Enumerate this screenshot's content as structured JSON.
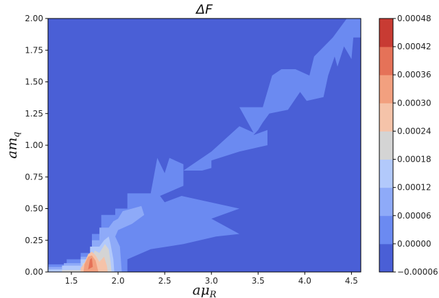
{
  "chart_data": {
    "type": "heatmap",
    "subtype": "filled-contour",
    "title": "ΔF",
    "xlabel": "aμ_R",
    "ylabel": "am_q",
    "xlim": [
      1.25,
      4.6
    ],
    "ylim": [
      0.0,
      2.0
    ],
    "x_ticks": [
      "1.5",
      "2.0",
      "2.5",
      "3.0",
      "3.5",
      "4.0",
      "4.5"
    ],
    "y_ticks": [
      "0.00",
      "0.25",
      "0.50",
      "0.75",
      "1.00",
      "1.25",
      "1.50",
      "1.75",
      "2.00"
    ],
    "grid": false,
    "colormap": "coolwarm",
    "colorbar": {
      "levels": [
        -6e-05,
        0.0,
        6e-05,
        0.00012,
        0.00018,
        0.00024,
        0.0003,
        0.00036,
        0.00042,
        0.00048
      ],
      "tick_labels": [
        "−0.00006",
        "0.00000",
        "0.00006",
        "0.00012",
        "0.00018",
        "0.00024",
        "0.00030",
        "0.00036",
        "0.00042",
        "0.00048"
      ],
      "colors": [
        "#4a5fd6",
        "#6b8af1",
        "#8eaaf8",
        "#b2c9fb",
        "#d4d4d4",
        "#f5c3a9",
        "#f2a07f",
        "#e57258",
        "#c83b33"
      ]
    },
    "regions": [
      {
        "level": 1,
        "points": [
          [
            1.25,
            0.06
          ],
          [
            1.45,
            0.06
          ],
          [
            1.45,
            0.1
          ],
          [
            1.6,
            0.1
          ],
          [
            1.6,
            0.15
          ],
          [
            1.72,
            0.15
          ],
          [
            1.72,
            0.3
          ],
          [
            1.82,
            0.3
          ],
          [
            1.82,
            0.45
          ],
          [
            1.97,
            0.45
          ],
          [
            1.97,
            0.5
          ],
          [
            2.1,
            0.5
          ],
          [
            2.1,
            0.62
          ],
          [
            2.35,
            0.62
          ],
          [
            2.42,
            0.9
          ],
          [
            2.5,
            0.78
          ],
          [
            2.55,
            0.9
          ],
          [
            2.7,
            0.85
          ],
          [
            2.7,
            0.8
          ],
          [
            3.0,
            0.95
          ],
          [
            3.15,
            1.05
          ],
          [
            3.3,
            1.15
          ],
          [
            3.45,
            1.1
          ],
          [
            3.3,
            1.3
          ],
          [
            3.55,
            1.3
          ],
          [
            3.65,
            1.55
          ],
          [
            3.75,
            1.6
          ],
          [
            3.9,
            1.6
          ],
          [
            4.05,
            1.55
          ],
          [
            4.1,
            1.7
          ],
          [
            4.3,
            1.85
          ],
          [
            4.4,
            1.95
          ],
          [
            4.45,
            2.0
          ],
          [
            4.6,
            2.0
          ],
          [
            4.6,
            1.85
          ],
          [
            4.52,
            1.85
          ],
          [
            4.5,
            1.68
          ],
          [
            4.42,
            1.78
          ],
          [
            4.35,
            1.62
          ],
          [
            4.32,
            1.7
          ],
          [
            4.25,
            1.55
          ],
          [
            4.2,
            1.38
          ],
          [
            4.02,
            1.35
          ],
          [
            3.95,
            1.42
          ],
          [
            3.82,
            1.28
          ],
          [
            3.62,
            1.25
          ],
          [
            3.55,
            1.18
          ],
          [
            3.5,
            1.12
          ],
          [
            3.45,
            1.08
          ],
          [
            3.6,
            1.12
          ],
          [
            3.6,
            1.0
          ],
          [
            3.3,
            0.95
          ],
          [
            3.0,
            0.88
          ],
          [
            3.0,
            0.82
          ],
          [
            2.9,
            0.8
          ],
          [
            2.7,
            0.8
          ],
          [
            2.7,
            0.68
          ],
          [
            2.45,
            0.6
          ],
          [
            2.5,
            0.55
          ],
          [
            2.68,
            0.6
          ],
          [
            3.3,
            0.5
          ],
          [
            3.0,
            0.42
          ],
          [
            3.3,
            0.3
          ],
          [
            3.05,
            0.28
          ],
          [
            2.7,
            0.22
          ],
          [
            2.35,
            0.18
          ],
          [
            2.1,
            0.1
          ],
          [
            2.1,
            0.0
          ],
          [
            1.25,
            0.0
          ]
        ]
      },
      {
        "level": 2,
        "points": [
          [
            1.25,
            0.0
          ],
          [
            1.25,
            0.04
          ],
          [
            1.42,
            0.04
          ],
          [
            1.42,
            0.07
          ],
          [
            1.6,
            0.07
          ],
          [
            1.6,
            0.12
          ],
          [
            1.72,
            0.12
          ],
          [
            1.72,
            0.25
          ],
          [
            1.8,
            0.25
          ],
          [
            1.8,
            0.35
          ],
          [
            1.9,
            0.35
          ],
          [
            1.95,
            0.4
          ],
          [
            2.0,
            0.42
          ],
          [
            2.05,
            0.48
          ],
          [
            2.25,
            0.52
          ],
          [
            2.28,
            0.45
          ],
          [
            2.15,
            0.38
          ],
          [
            2.0,
            0.33
          ],
          [
            1.97,
            0.28
          ],
          [
            2.02,
            0.2
          ],
          [
            2.03,
            0.1
          ],
          [
            2.04,
            0.0
          ]
        ]
      },
      {
        "level": 3,
        "points": [
          [
            1.25,
            0.0
          ],
          [
            1.25,
            0.02
          ],
          [
            1.4,
            0.02
          ],
          [
            1.4,
            0.05
          ],
          [
            1.6,
            0.05
          ],
          [
            1.6,
            0.1
          ],
          [
            1.7,
            0.1
          ],
          [
            1.7,
            0.2
          ],
          [
            1.8,
            0.2
          ],
          [
            1.85,
            0.25
          ],
          [
            1.9,
            0.28
          ],
          [
            1.92,
            0.22
          ],
          [
            1.95,
            0.1
          ],
          [
            1.96,
            0.0
          ]
        ]
      },
      {
        "level": 4,
        "points": [
          [
            1.4,
            0.0
          ],
          [
            1.4,
            0.015
          ],
          [
            1.62,
            0.015
          ],
          [
            1.62,
            0.07
          ],
          [
            1.7,
            0.08
          ],
          [
            1.75,
            0.17
          ],
          [
            1.8,
            0.15
          ],
          [
            1.86,
            0.22
          ],
          [
            1.9,
            0.18
          ],
          [
            1.92,
            0.08
          ],
          [
            1.93,
            0.0
          ]
        ]
      },
      {
        "level": 5,
        "points": [
          [
            1.6,
            0.0
          ],
          [
            1.6,
            0.03
          ],
          [
            1.64,
            0.07
          ],
          [
            1.68,
            0.14
          ],
          [
            1.72,
            0.16
          ],
          [
            1.76,
            0.13
          ],
          [
            1.8,
            0.08
          ],
          [
            1.85,
            0.12
          ],
          [
            1.88,
            0.05
          ],
          [
            1.89,
            0.0
          ]
        ]
      },
      {
        "level": 6,
        "points": [
          [
            1.63,
            0.0
          ],
          [
            1.64,
            0.06
          ],
          [
            1.68,
            0.12
          ],
          [
            1.72,
            0.13
          ],
          [
            1.76,
            0.09
          ],
          [
            1.78,
            0.03
          ],
          [
            1.79,
            0.0
          ]
        ]
      },
      {
        "level": 7,
        "points": [
          [
            1.68,
            0.02
          ],
          [
            1.7,
            0.1
          ],
          [
            1.72,
            0.11
          ],
          [
            1.73,
            0.04
          ]
        ]
      }
    ]
  }
}
